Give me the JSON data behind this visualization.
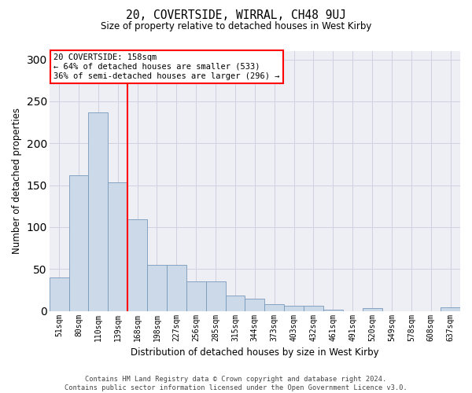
{
  "title": "20, COVERTSIDE, WIRRAL, CH48 9UJ",
  "subtitle": "Size of property relative to detached houses in West Kirby",
  "xlabel": "Distribution of detached houses by size in West Kirby",
  "ylabel": "Number of detached properties",
  "bar_color": "#ccd9e8",
  "bar_edge_color": "#7799bb",
  "categories": [
    "51sqm",
    "80sqm",
    "110sqm",
    "139sqm",
    "168sqm",
    "198sqm",
    "227sqm",
    "256sqm",
    "285sqm",
    "315sqm",
    "344sqm",
    "373sqm",
    "403sqm",
    "432sqm",
    "461sqm",
    "491sqm",
    "520sqm",
    "549sqm",
    "578sqm",
    "608sqm",
    "637sqm"
  ],
  "values": [
    40,
    162,
    237,
    153,
    109,
    55,
    55,
    35,
    35,
    18,
    15,
    8,
    6,
    6,
    2,
    0,
    3,
    0,
    0,
    0,
    4
  ],
  "ylim": [
    0,
    310
  ],
  "yticks": [
    0,
    50,
    100,
    150,
    200,
    250,
    300
  ],
  "vline_x": 3.5,
  "annotation_line1": "20 COVERTSIDE: 158sqm",
  "annotation_line2": "← 64% of detached houses are smaller (533)",
  "annotation_line3": "36% of semi-detached houses are larger (296) →",
  "footer_line1": "Contains HM Land Registry data © Crown copyright and database right 2024.",
  "footer_line2": "Contains public sector information licensed under the Open Government Licence v3.0.",
  "grid_color": "#d0d0e0",
  "background_color": "#eeeef5"
}
